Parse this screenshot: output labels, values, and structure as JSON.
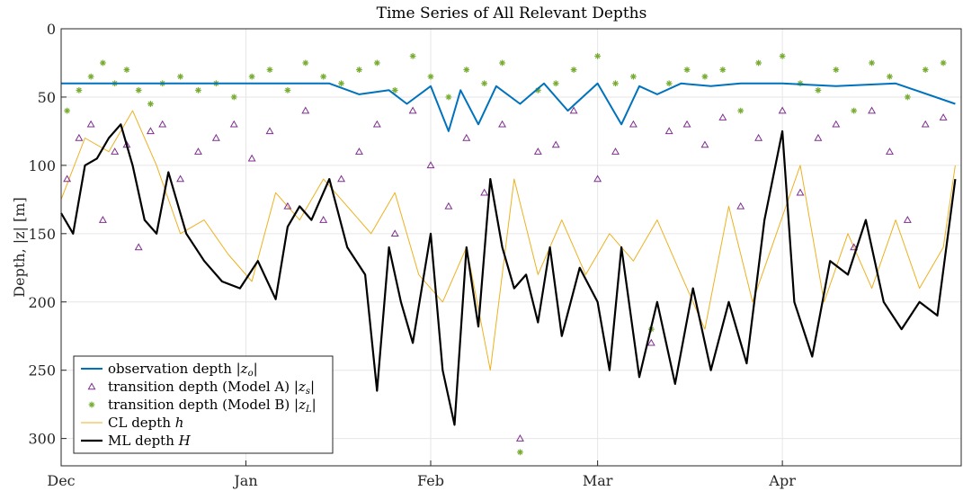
{
  "chart_data": {
    "type": "line",
    "title": "Time Series of All Relevant Depths",
    "ylabel": "Depth, |z| [m]",
    "xlabel": "",
    "xlim": [
      "Dec 1",
      "Apr 30"
    ],
    "ylim": [
      320,
      0
    ],
    "y_direction": "reversed",
    "x_ticks": [
      "Dec",
      "Jan",
      "Feb",
      "Mar",
      "Apr"
    ],
    "y_ticks": [
      0,
      50,
      100,
      150,
      200,
      250,
      300
    ],
    "grid": true,
    "legend_position": "bottom-left",
    "series": [
      {
        "name": "observation depth |zo|",
        "style": "line",
        "color": "#0072BD",
        "x": [
          "Dec 1",
          "Dec 15",
          "Jan 1",
          "Jan 15",
          "Jan 20",
          "Jan 25",
          "Jan 28",
          "Feb 1",
          "Feb 4",
          "Feb 6",
          "Feb 9",
          "Feb 12",
          "Feb 16",
          "Feb 20",
          "Feb 24",
          "Mar 1",
          "Mar 5",
          "Mar 8",
          "Mar 11",
          "Mar 15",
          "Mar 20",
          "Mar 25",
          "Apr 1",
          "Apr 10",
          "Apr 20",
          "Apr 30"
        ],
        "values": [
          40,
          40,
          40,
          40,
          48,
          45,
          55,
          42,
          75,
          45,
          70,
          42,
          55,
          40,
          60,
          40,
          70,
          42,
          48,
          40,
          42,
          40,
          40,
          42,
          40,
          55
        ]
      },
      {
        "name": "transition depth (Model A) |zs|",
        "style": "triangle-markers",
        "color": "#7E2F8E",
        "x": [
          "Dec 2",
          "Dec 4",
          "Dec 6",
          "Dec 8",
          "Dec 10",
          "Dec 12",
          "Dec 14",
          "Dec 16",
          "Dec 18",
          "Dec 21",
          "Dec 24",
          "Dec 27",
          "Dec 30",
          "Jan 2",
          "Jan 5",
          "Jan 8",
          "Jan 11",
          "Jan 14",
          "Jan 17",
          "Jan 20",
          "Jan 23",
          "Jan 26",
          "Jan 29",
          "Feb 1",
          "Feb 4",
          "Feb 7",
          "Feb 10",
          "Feb 13",
          "Feb 16",
          "Feb 19",
          "Feb 22",
          "Feb 25",
          "Mar 1",
          "Mar 4",
          "Mar 7",
          "Mar 10",
          "Mar 13",
          "Mar 16",
          "Mar 19",
          "Mar 22",
          "Mar 25",
          "Mar 28",
          "Apr 1",
          "Apr 4",
          "Apr 7",
          "Apr 10",
          "Apr 13",
          "Apr 16",
          "Apr 19",
          "Apr 22",
          "Apr 25",
          "Apr 28"
        ],
        "values": [
          110,
          80,
          70,
          140,
          90,
          85,
          160,
          75,
          70,
          110,
          90,
          80,
          70,
          95,
          75,
          130,
          60,
          140,
          110,
          90,
          70,
          150,
          60,
          100,
          130,
          80,
          120,
          70,
          300,
          90,
          85,
          60,
          110,
          90,
          70,
          230,
          75,
          70,
          85,
          65,
          130,
          80,
          60,
          120,
          80,
          70,
          160,
          60,
          90,
          140,
          70,
          65
        ]
      },
      {
        "name": "transition depth (Model B) |zL|",
        "style": "star-markers",
        "color": "#77AC30",
        "x": [
          "Dec 2",
          "Dec 4",
          "Dec 6",
          "Dec 8",
          "Dec 10",
          "Dec 12",
          "Dec 14",
          "Dec 16",
          "Dec 18",
          "Dec 21",
          "Dec 24",
          "Dec 27",
          "Dec 30",
          "Jan 2",
          "Jan 5",
          "Jan 8",
          "Jan 11",
          "Jan 14",
          "Jan 17",
          "Jan 20",
          "Jan 23",
          "Jan 26",
          "Jan 29",
          "Feb 1",
          "Feb 4",
          "Feb 7",
          "Feb 10",
          "Feb 13",
          "Feb 16",
          "Feb 19",
          "Feb 22",
          "Feb 25",
          "Mar 1",
          "Mar 4",
          "Mar 7",
          "Mar 10",
          "Mar 13",
          "Mar 16",
          "Mar 19",
          "Mar 22",
          "Mar 25",
          "Mar 28",
          "Apr 1",
          "Apr 4",
          "Apr 7",
          "Apr 10",
          "Apr 13",
          "Apr 16",
          "Apr 19",
          "Apr 22",
          "Apr 25",
          "Apr 28"
        ],
        "values": [
          60,
          45,
          35,
          25,
          40,
          30,
          45,
          55,
          40,
          35,
          45,
          40,
          50,
          35,
          30,
          45,
          25,
          35,
          40,
          30,
          25,
          45,
          20,
          35,
          50,
          30,
          40,
          25,
          310,
          45,
          40,
          30,
          20,
          40,
          35,
          220,
          40,
          30,
          35,
          30,
          60,
          25,
          20,
          40,
          45,
          30,
          60,
          25,
          35,
          50,
          30,
          25
        ]
      },
      {
        "name": "CL depth h",
        "style": "thin-line",
        "color": "#EDB120",
        "x": [
          "Dec 1",
          "Dec 5",
          "Dec 9",
          "Dec 13",
          "Dec 17",
          "Dec 21",
          "Dec 25",
          "Dec 29",
          "Jan 2",
          "Jan 6",
          "Jan 10",
          "Jan 14",
          "Jan 18",
          "Jan 22",
          "Jan 26",
          "Jan 30",
          "Feb 3",
          "Feb 7",
          "Feb 11",
          "Feb 15",
          "Feb 19",
          "Feb 23",
          "Feb 27",
          "Mar 3",
          "Mar 7",
          "Mar 11",
          "Mar 15",
          "Mar 19",
          "Mar 23",
          "Mar 27",
          "Mar 31",
          "Apr 4",
          "Apr 8",
          "Apr 12",
          "Apr 16",
          "Apr 20",
          "Apr 24",
          "Apr 28",
          "Apr 30"
        ],
        "values": [
          125,
          80,
          90,
          60,
          100,
          150,
          140,
          165,
          185,
          120,
          140,
          110,
          130,
          150,
          120,
          180,
          200,
          160,
          250,
          110,
          180,
          140,
          180,
          150,
          170,
          140,
          180,
          220,
          130,
          200,
          150,
          100,
          200,
          150,
          190,
          140,
          190,
          160,
          100
        ]
      },
      {
        "name": "ML depth H",
        "style": "thick-line",
        "color": "#000000",
        "x": [
          "Dec 1",
          "Dec 3",
          "Dec 5",
          "Dec 7",
          "Dec 9",
          "Dec 11",
          "Dec 13",
          "Dec 15",
          "Dec 17",
          "Dec 19",
          "Dec 22",
          "Dec 25",
          "Dec 28",
          "Dec 31",
          "Jan 3",
          "Jan 6",
          "Jan 8",
          "Jan 10",
          "Jan 12",
          "Jan 15",
          "Jan 18",
          "Jan 21",
          "Jan 23",
          "Jan 25",
          "Jan 27",
          "Jan 29",
          "Feb 1",
          "Feb 3",
          "Feb 5",
          "Feb 7",
          "Feb 9",
          "Feb 11",
          "Feb 13",
          "Feb 15",
          "Feb 17",
          "Feb 19",
          "Feb 21",
          "Feb 23",
          "Feb 26",
          "Mar 1",
          "Mar 3",
          "Mar 5",
          "Mar 8",
          "Mar 11",
          "Mar 14",
          "Mar 17",
          "Mar 20",
          "Mar 23",
          "Mar 26",
          "Mar 29",
          "Apr 1",
          "Apr 3",
          "Apr 6",
          "Apr 9",
          "Apr 12",
          "Apr 15",
          "Apr 18",
          "Apr 21",
          "Apr 24",
          "Apr 27",
          "Apr 30"
        ],
        "values": [
          135,
          150,
          100,
          95,
          80,
          70,
          100,
          140,
          150,
          105,
          150,
          170,
          185,
          190,
          170,
          198,
          145,
          130,
          140,
          110,
          160,
          180,
          265,
          160,
          200,
          230,
          150,
          250,
          290,
          160,
          218,
          110,
          160,
          190,
          180,
          215,
          160,
          225,
          175,
          200,
          250,
          160,
          255,
          200,
          260,
          190,
          250,
          200,
          245,
          140,
          75,
          200,
          240,
          170,
          180,
          140,
          200,
          220,
          200,
          210,
          110
        ]
      }
    ]
  }
}
